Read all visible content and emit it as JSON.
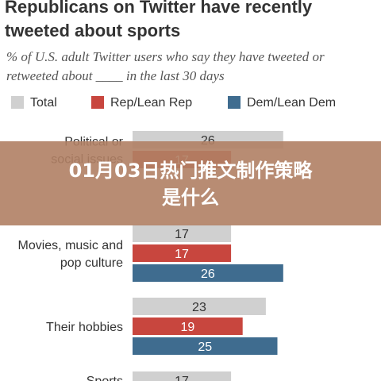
{
  "chart_data": {
    "type": "bar",
    "orientation": "horizontal",
    "title": "Republicans on Twitter have recently tweeted about sports",
    "subtitle": "% of U.S. adult Twitter users who say they have tweeted or retweeted about ____ in the last 30 days",
    "categories": [
      [
        "Political or",
        "social issues"
      ],
      [
        "Movies, music and",
        "pop culture"
      ],
      [
        "Their hobbies"
      ],
      [
        "Sports"
      ]
    ],
    "series": [
      {
        "name": "Total",
        "color": "#d0d0d0",
        "values": [
          26,
          17,
          23,
          17
        ]
      },
      {
        "name": "Rep/Lean Rep",
        "color": "#c8463e",
        "values": [
          17,
          17,
          19,
          null
        ]
      },
      {
        "name": "Dem/Lean Dem",
        "color": "#3f6c8f",
        "values": [
          null,
          26,
          25,
          null
        ]
      }
    ],
    "legend_position": "top",
    "grid": false
  },
  "overlay": {
    "lines": [
      "01月03日热门推文制作策略",
      "是什么"
    ]
  }
}
